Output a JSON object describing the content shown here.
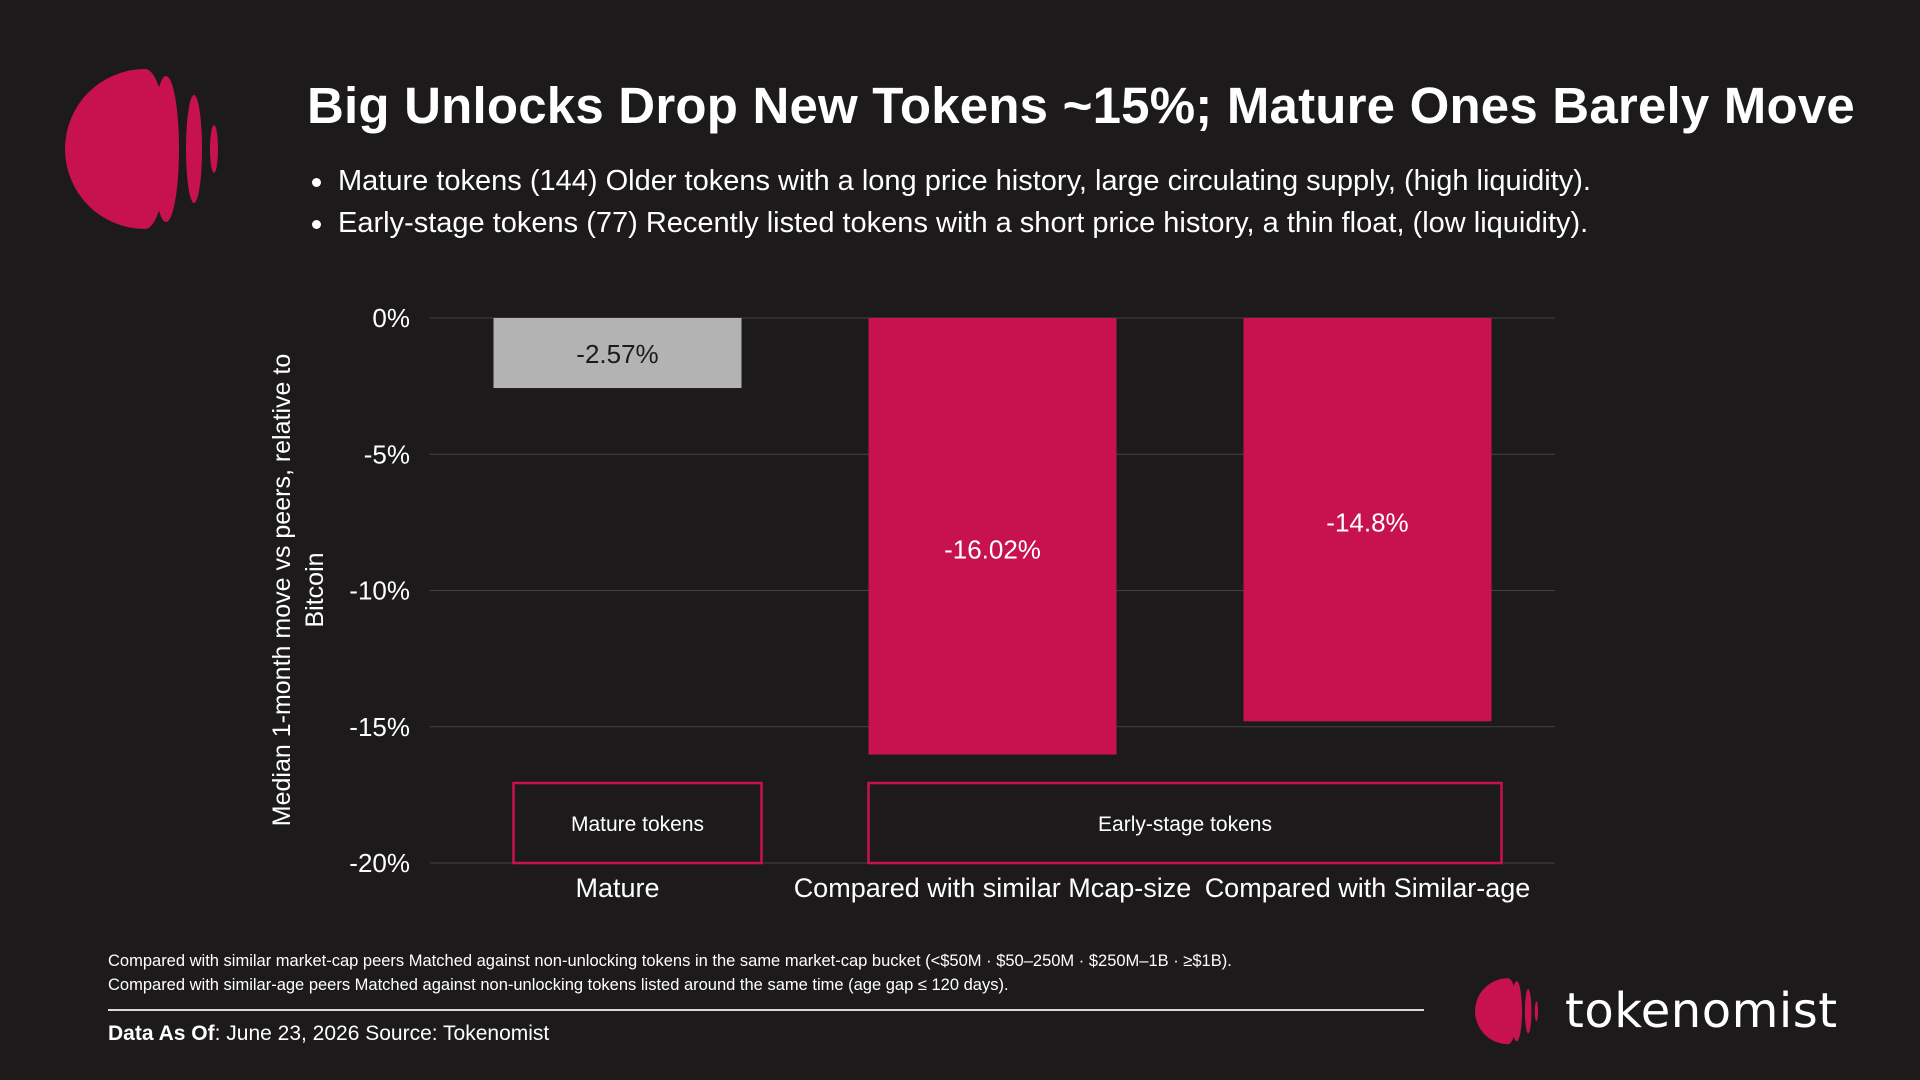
{
  "title": "Big Unlocks Drop New Tokens ~15%; Mature Ones Barely Move",
  "bullets": [
    "Mature tokens (144) Older tokens with a long price history, large circulating supply, (high liquidity).",
    "Early-stage tokens (77) Recently listed tokens with a short price history, a thin float, (low liquidity)."
  ],
  "colors": {
    "background": "#1c1a1b",
    "accent": "#c8124f",
    "mature_bar": "#b3b3b3",
    "grid": "#444244"
  },
  "chart_data": {
    "type": "bar",
    "categories": [
      "Mature",
      "Compared with similar Mcap-size",
      "Compared with Similar-age"
    ],
    "values": [
      -2.57,
      -16.02,
      -14.8
    ],
    "data_labels": [
      "-2.57%",
      "-16.02%",
      "-14.8%"
    ],
    "ylabel": "Median 1-month move vs peers, relative to Bitcoin",
    "ylim": [
      -20,
      0
    ],
    "yticks": [
      0,
      -5,
      -10,
      -15,
      -20
    ],
    "ytick_labels": [
      "0%",
      "-5%",
      "-10%",
      "-15%",
      "-20%"
    ],
    "grid": true,
    "bar_colors": [
      "#b3b3b3",
      "#c8124f",
      "#c8124f"
    ],
    "groups": [
      {
        "label": "Mature tokens",
        "categories": [
          0
        ]
      },
      {
        "label": "Early-stage tokens",
        "categories": [
          1,
          2
        ]
      }
    ]
  },
  "footnotes": [
    "Compared with similar market-cap peers Matched against non-unlocking tokens in the same market-cap bucket (<$50M · $50–250M · $250M–1B · ≥$1B).",
    "Compared with similar-age peers Matched against non-unlocking tokens listed around the same time (age gap ≤ 120 days)."
  ],
  "source": {
    "date_label": "Data As Of",
    "date_value": ": June 23, 2026  Source: Tokenomist"
  },
  "brand": {
    "name": "tokenomist",
    "logo_icon": "tokenomist-logo-icon"
  }
}
